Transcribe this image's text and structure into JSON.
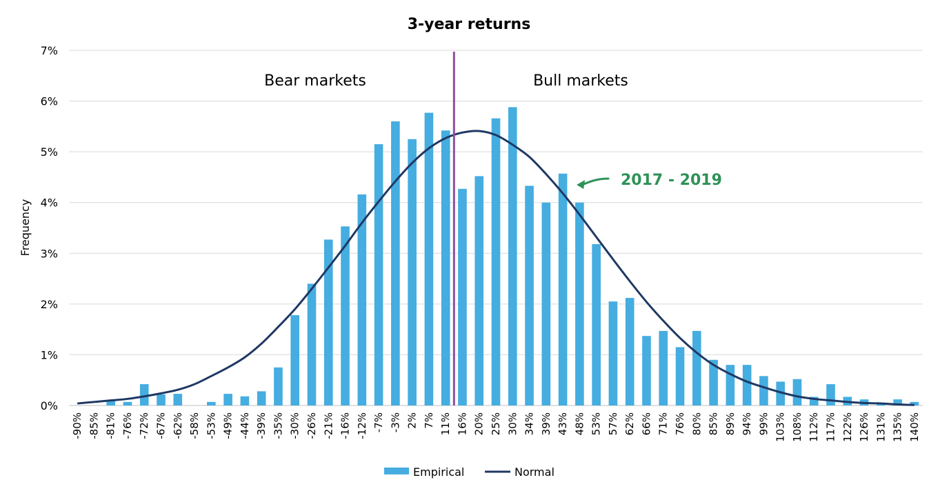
{
  "chart_data": {
    "type": "bar",
    "title": "3-year returns",
    "xlabel": "",
    "ylabel": "Frequency",
    "ylim": [
      0,
      7
    ],
    "yticks": [
      "0%",
      "1%",
      "2%",
      "3%",
      "4%",
      "5%",
      "6%",
      "7%"
    ],
    "grid": true,
    "legend_position": "bottom",
    "categories": [
      "-90%",
      "-85%",
      "-81%",
      "-76%",
      "-72%",
      "-67%",
      "-62%",
      "-58%",
      "-53%",
      "-49%",
      "-44%",
      "-39%",
      "-35%",
      "-30%",
      "-26%",
      "-21%",
      "-16%",
      "-12%",
      "-7%",
      "-3%",
      "2%",
      "7%",
      "11%",
      "16%",
      "20%",
      "25%",
      "30%",
      "34%",
      "39%",
      "43%",
      "48%",
      "53%",
      "57%",
      "62%",
      "66%",
      "71%",
      "76%",
      "80%",
      "85%",
      "89%",
      "94%",
      "99%",
      "103%",
      "108%",
      "112%",
      "117%",
      "122%",
      "126%",
      "131%",
      "135%",
      "140%"
    ],
    "series": [
      {
        "name": "Empirical",
        "kind": "bar",
        "color": "#45ade0",
        "values": [
          0,
          0,
          0.1,
          0.07,
          0.42,
          0.22,
          0.23,
          0,
          0.07,
          0.23,
          0.18,
          0.28,
          0.75,
          1.78,
          2.4,
          3.27,
          3.53,
          4.16,
          5.15,
          5.6,
          5.25,
          5.77,
          5.42,
          4.27,
          4.52,
          5.66,
          5.88,
          4.33,
          4.0,
          4.57,
          4.0,
          3.18,
          2.05,
          2.12,
          1.37,
          1.47,
          1.15,
          1.47,
          0.9,
          0.8,
          0.8,
          0.58,
          0.47,
          0.52,
          0.17,
          0.42,
          0.17,
          0.12,
          0.03,
          0.12,
          0.07
        ]
      },
      {
        "name": "Normal",
        "kind": "line",
        "color": "#1f3864",
        "values": [
          0.04,
          0.07,
          0.1,
          0.13,
          0.18,
          0.24,
          0.31,
          0.42,
          0.58,
          0.75,
          0.95,
          1.22,
          1.55,
          1.9,
          2.3,
          2.72,
          3.15,
          3.6,
          4.02,
          4.42,
          4.78,
          5.07,
          5.27,
          5.38,
          5.41,
          5.33,
          5.14,
          4.9,
          4.56,
          4.18,
          3.76,
          3.32,
          2.88,
          2.45,
          2.04,
          1.67,
          1.33,
          1.04,
          0.8,
          0.62,
          0.47,
          0.36,
          0.26,
          0.18,
          0.13,
          0.1,
          0.07,
          0.05,
          0.04,
          0.02,
          0.01
        ]
      }
    ],
    "divider_after_category": "11%",
    "regions": {
      "left_label": "Bear markets",
      "right_label": "Bull markets"
    },
    "annotation": {
      "text": "2017 - 2019",
      "points_to_category": "43%",
      "color": "#2e9157"
    },
    "divider_color": "#8e4e9c"
  }
}
